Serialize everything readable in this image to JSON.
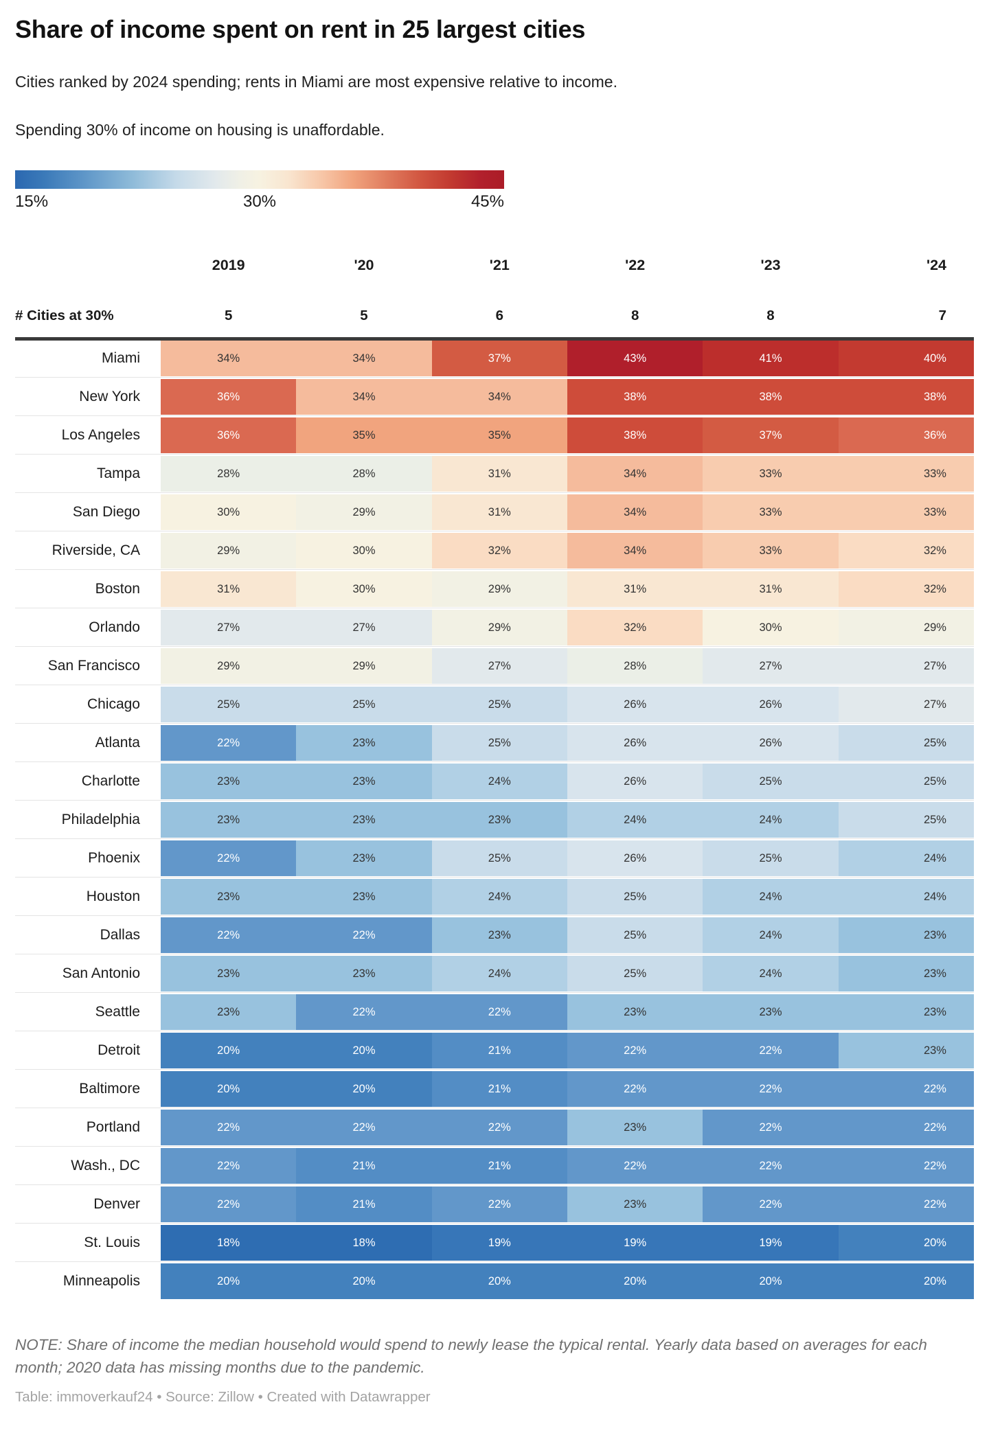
{
  "header": {
    "title": "Share of income spent on rent in 25 largest cities",
    "subtitle": "Cities ranked by 2024 spending; rents in Miami are most expensive relative to income.",
    "note": "Spending 30% of income on housing is unaffordable."
  },
  "legend": {
    "tick_min": "15%",
    "tick_mid": "30%",
    "tick_max": "45%",
    "position": "top",
    "min_color": "#2b68b0",
    "mid_color": "#f7f2e1",
    "max_color": "#ab1c27"
  },
  "chart_data": {
    "type": "heatmap",
    "title": "Share of income spent on rent in 25 largest cities",
    "unit": "%",
    "columns": [
      "2019",
      "'20",
      "'21",
      "'22",
      "'23",
      "'24"
    ],
    "cities_at_30_row": {
      "label": "# Cities at 30%",
      "values": [
        "5",
        "5",
        "6",
        "8",
        "8",
        "7"
      ]
    },
    "rows": [
      {
        "city": "Miami",
        "values": [
          34,
          34,
          37,
          43,
          41,
          40
        ]
      },
      {
        "city": "New York",
        "values": [
          36,
          34,
          34,
          38,
          38,
          38
        ]
      },
      {
        "city": "Los Angeles",
        "values": [
          36,
          35,
          35,
          38,
          37,
          36
        ]
      },
      {
        "city": "Tampa",
        "values": [
          28,
          28,
          31,
          34,
          33,
          33
        ]
      },
      {
        "city": "San Diego",
        "values": [
          30,
          29,
          31,
          34,
          33,
          33
        ]
      },
      {
        "city": "Riverside, CA",
        "values": [
          29,
          30,
          32,
          34,
          33,
          32
        ]
      },
      {
        "city": "Boston",
        "values": [
          31,
          30,
          29,
          31,
          31,
          32
        ]
      },
      {
        "city": "Orlando",
        "values": [
          27,
          27,
          29,
          32,
          30,
          29
        ]
      },
      {
        "city": "San Francisco",
        "values": [
          29,
          29,
          27,
          28,
          27,
          27
        ]
      },
      {
        "city": "Chicago",
        "values": [
          25,
          25,
          25,
          26,
          26,
          27
        ]
      },
      {
        "city": "Atlanta",
        "values": [
          22,
          23,
          25,
          26,
          26,
          25
        ]
      },
      {
        "city": "Charlotte",
        "values": [
          23,
          23,
          24,
          26,
          25,
          25
        ]
      },
      {
        "city": "Philadelphia",
        "values": [
          23,
          23,
          23,
          24,
          24,
          25
        ]
      },
      {
        "city": "Phoenix",
        "values": [
          22,
          23,
          25,
          26,
          25,
          24
        ]
      },
      {
        "city": "Houston",
        "values": [
          23,
          23,
          24,
          25,
          24,
          24
        ]
      },
      {
        "city": "Dallas",
        "values": [
          22,
          22,
          23,
          25,
          24,
          23
        ]
      },
      {
        "city": "San Antonio",
        "values": [
          23,
          23,
          24,
          25,
          24,
          23
        ]
      },
      {
        "city": "Seattle",
        "values": [
          23,
          22,
          22,
          23,
          23,
          23
        ]
      },
      {
        "city": "Detroit",
        "values": [
          20,
          20,
          21,
          22,
          22,
          23
        ]
      },
      {
        "city": "Baltimore",
        "values": [
          20,
          20,
          21,
          22,
          22,
          22
        ]
      },
      {
        "city": "Portland",
        "values": [
          22,
          22,
          22,
          23,
          22,
          22
        ]
      },
      {
        "city": "Wash., DC",
        "values": [
          22,
          21,
          21,
          22,
          22,
          22
        ]
      },
      {
        "city": "Denver",
        "values": [
          22,
          21,
          22,
          23,
          22,
          22
        ]
      },
      {
        "city": "St. Louis",
        "values": [
          18,
          18,
          19,
          19,
          19,
          20
        ]
      },
      {
        "city": "Minneapolis",
        "values": [
          20,
          20,
          20,
          20,
          20,
          20
        ]
      }
    ],
    "color_scale": {
      "domain": [
        15,
        45
      ],
      "midpoint": 30,
      "value_colors": {
        "18": "#2e6db2",
        "19": "#3776b8",
        "20": "#4381bd",
        "21": "#538dc5",
        "22": "#6297ca",
        "23": "#98c2de",
        "24": "#b1d0e5",
        "25": "#c9dcea",
        "26": "#d8e4ed",
        "27": "#e2e9ec",
        "28": "#ebefe7",
        "29": "#f2f1e4",
        "30": "#f7f2e1",
        "31": "#f9e7d2",
        "32": "#fadcc3",
        "33": "#f8ccaf",
        "34": "#f5bb9c",
        "35": "#f1a47e",
        "36": "#da6951",
        "37": "#d35b43",
        "38": "#ce4c3a",
        "40": "#c33a30",
        "41": "#bc2e2c",
        "43": "#b01f2b"
      },
      "light_text_blue_max": 22,
      "light_text_red_min": 36,
      "text_dark": "#333333",
      "text_light": "#ffffff"
    }
  },
  "footer": {
    "note": "NOTE: Share of income the median household would spend to newly lease the typical rental. Yearly data based on averages for each month; 2020 data has missing months due to the pandemic.",
    "attribution": {
      "table_label": "Table: ",
      "table_source": "immoverkauf24",
      "separator": " • ",
      "source_label": "Source: ",
      "source_name": "Zillow",
      "created_with": "Created with Datawrapper"
    }
  }
}
